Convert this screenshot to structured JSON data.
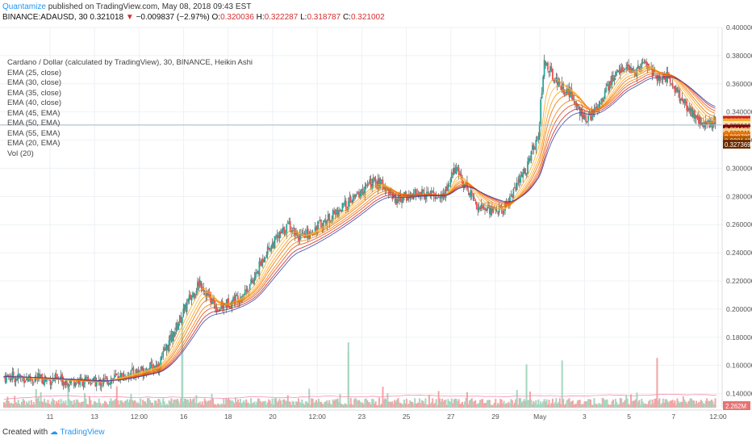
{
  "header": {
    "brand": "Quantamize",
    "published_text": "published on TradingView.com, May 08, 2018 09:43 EST"
  },
  "ohlc_line": {
    "symbol_text": "BINANCE:ADAUSD, 30",
    "last": "0.321018",
    "change_text": "−0.009837 (−2.97%)",
    "o_label": "O:",
    "o_value": "0.320036",
    "h_label": "H:",
    "h_value": "0.322287",
    "l_label": "L:",
    "l_value": "0.318787",
    "c_label": "C:",
    "c_value": "0.321002"
  },
  "legend": {
    "title": "Cardano / Dollar (calculated by TradingView), 30, BINANCE, Heikin Ashi",
    "items": [
      "EMA (25, close)",
      "EMA (30, close)",
      "EMA (35, close)",
      "EMA (40, close)",
      "EMA (45, EMA)",
      "EMA (50, EMA)",
      "EMA (55, EMA)",
      "EMA (20, EMA)",
      "Vol (20)"
    ]
  },
  "footer": {
    "created_with": "Created with",
    "tradingview": "TradingView"
  },
  "colors": {
    "up": "#26a69a",
    "down": "#ef5350",
    "vol_up": "#a5d6c0",
    "vol_down": "#f4a4a4",
    "ema_fast": "#f9a825",
    "ema_mid": "#ef6c00",
    "ema_slow": "#c62828",
    "ema_blue": "#3949ab"
  },
  "chart_data": {
    "type": "candlestick",
    "style": "Heikin Ashi",
    "ylim": [
      0.13,
      0.4
    ],
    "y_ticks": [
      "0.400000",
      "0.380000",
      "0.360000",
      "0.340000",
      "0.320000",
      "0.300000",
      "0.280000",
      "0.260000",
      "0.240000",
      "0.220000",
      "0.200000",
      "0.180000",
      "0.160000",
      "0.140000"
    ],
    "x_ticks": [
      "11",
      "13",
      "12:00",
      "16",
      "18",
      "20",
      "12:00",
      "23",
      "25",
      "27",
      "29",
      "May",
      "3",
      "5",
      "7",
      "12:00"
    ],
    "price_path": [
      [
        0,
        0.152
      ],
      [
        4,
        0.15
      ],
      [
        8,
        0.148
      ],
      [
        11,
        0.155
      ],
      [
        13,
        0.16
      ],
      [
        15.5,
        0.205
      ],
      [
        16.5,
        0.22
      ],
      [
        17,
        0.212
      ],
      [
        18,
        0.2
      ],
      [
        20,
        0.21
      ],
      [
        21,
        0.22
      ],
      [
        22,
        0.24
      ],
      [
        24,
        0.26
      ],
      [
        25,
        0.25
      ],
      [
        27,
        0.262
      ],
      [
        29,
        0.275
      ],
      [
        31,
        0.29
      ],
      [
        32,
        0.288
      ],
      [
        33,
        0.278
      ],
      [
        35,
        0.282
      ],
      [
        37,
        0.28
      ],
      [
        38,
        0.3
      ],
      [
        39,
        0.286
      ],
      [
        40,
        0.272
      ],
      [
        42,
        0.27
      ],
      [
        43,
        0.285
      ],
      [
        44,
        0.3
      ],
      [
        45,
        0.325
      ],
      [
        45.5,
        0.376
      ],
      [
        46.5,
        0.362
      ],
      [
        48,
        0.35
      ],
      [
        49,
        0.332
      ],
      [
        50,
        0.345
      ],
      [
        51,
        0.36
      ],
      [
        52,
        0.372
      ],
      [
        53,
        0.368
      ],
      [
        54,
        0.375
      ],
      [
        55,
        0.365
      ],
      [
        56,
        0.365
      ],
      [
        57,
        0.35
      ],
      [
        58,
        0.338
      ],
      [
        59,
        0.33
      ],
      [
        60,
        0.335
      ],
      [
        60.6,
        0.32
      ]
    ],
    "ema_bands": [
      {
        "name": "EMA (25, close)",
        "lag": 0.45
      },
      {
        "name": "EMA (30, close)",
        "lag": 0.7
      },
      {
        "name": "EMA (35, close)",
        "lag": 0.95
      },
      {
        "name": "EMA (40, close)",
        "lag": 1.2
      },
      {
        "name": "EMA (45, EMA)",
        "lag": 1.55
      },
      {
        "name": "EMA (50, EMA)",
        "lag": 1.85
      },
      {
        "name": "EMA (55, EMA)",
        "lag": 2.2
      },
      {
        "name": "EMA (20, EMA)",
        "lag": 2.5
      }
    ],
    "volume_spikes": [
      [
        15,
        42
      ],
      [
        29,
        70
      ],
      [
        44,
        42
      ],
      [
        47,
        28
      ],
      [
        55,
        22
      ]
    ],
    "price_labels": [
      {
        "value": "0.333812",
        "y": 0.3338,
        "color": "#c62828"
      },
      {
        "value": "0.333410",
        "y": 0.3319,
        "color": "#f9a825"
      },
      {
        "value": "0.333066",
        "y": 0.3301,
        "color": "#ffe0b2"
      },
      {
        "value": "0.331987",
        "y": 0.3275,
        "color": "#7f0000"
      },
      {
        "value": "0.329211",
        "y": 0.325,
        "color": "#ffcc80"
      },
      {
        "value": "0.328725",
        "y": 0.3222,
        "color": "#ef6c00"
      },
      {
        "value": "0.328140",
        "y": 0.3195,
        "color": "#ad5a00"
      },
      {
        "value": "0.327369",
        "y": 0.3168,
        "color": "#6d2b00"
      }
    ],
    "volume_label": "2.262M"
  }
}
